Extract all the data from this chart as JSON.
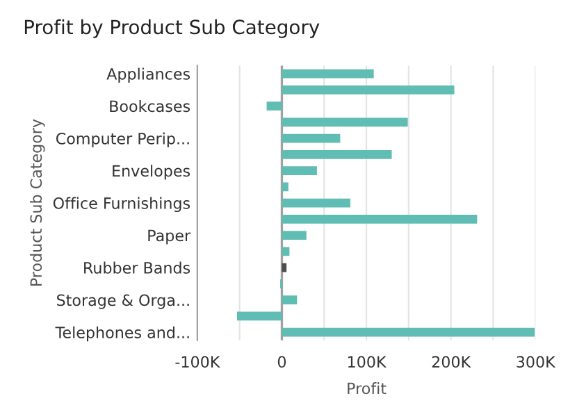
{
  "chart_data": {
    "type": "bar",
    "orientation": "horizontal",
    "title": "Profit by Product Sub Category",
    "xlabel": "Profit",
    "ylabel": "Product Sub Category",
    "categories": [
      "Appliances",
      null,
      "Bookcases",
      null,
      "Computer Perip...",
      null,
      "Envelopes",
      null,
      "Office Furnishings",
      null,
      "Paper",
      null,
      "Rubber Bands",
      null,
      "Storage & Orga...",
      null,
      "Telephones and..."
    ],
    "values": [
      108700,
      204000,
      -18000,
      149000,
      69000,
      130000,
      41500,
      7700,
      81000,
      231000,
      29000,
      9000,
      5500,
      -2000,
      18000,
      -53000,
      299000
    ],
    "colors": [
      "#5fbdb3",
      "#5fbdb3",
      "#5fbdb3",
      "#5fbdb3",
      "#5fbdb3",
      "#5fbdb3",
      "#5fbdb3",
      "#5fbdb3",
      "#5fbdb3",
      "#5fbdb3",
      "#5fbdb3",
      "#5fbdb3",
      "#4d4d4d",
      "#5fbdb3",
      "#5fbdb3",
      "#5fbdb3",
      "#5fbdb3"
    ],
    "xlim": [
      -100000,
      300000
    ],
    "xticks": [
      {
        "value": -100000,
        "label": "-100K"
      },
      {
        "value": -50000,
        "label": null
      },
      {
        "value": 0,
        "label": "0"
      },
      {
        "value": 50000,
        "label": null
      },
      {
        "value": 100000,
        "label": "100K"
      },
      {
        "value": 150000,
        "label": null
      },
      {
        "value": 200000,
        "label": "200K"
      },
      {
        "value": 250000,
        "label": null
      },
      {
        "value": 300000,
        "label": "300K"
      }
    ],
    "ref_lines": [
      {
        "axis": "x",
        "value": 0,
        "color": "#a0a0a0"
      }
    ],
    "grid": "x",
    "legend": false
  }
}
